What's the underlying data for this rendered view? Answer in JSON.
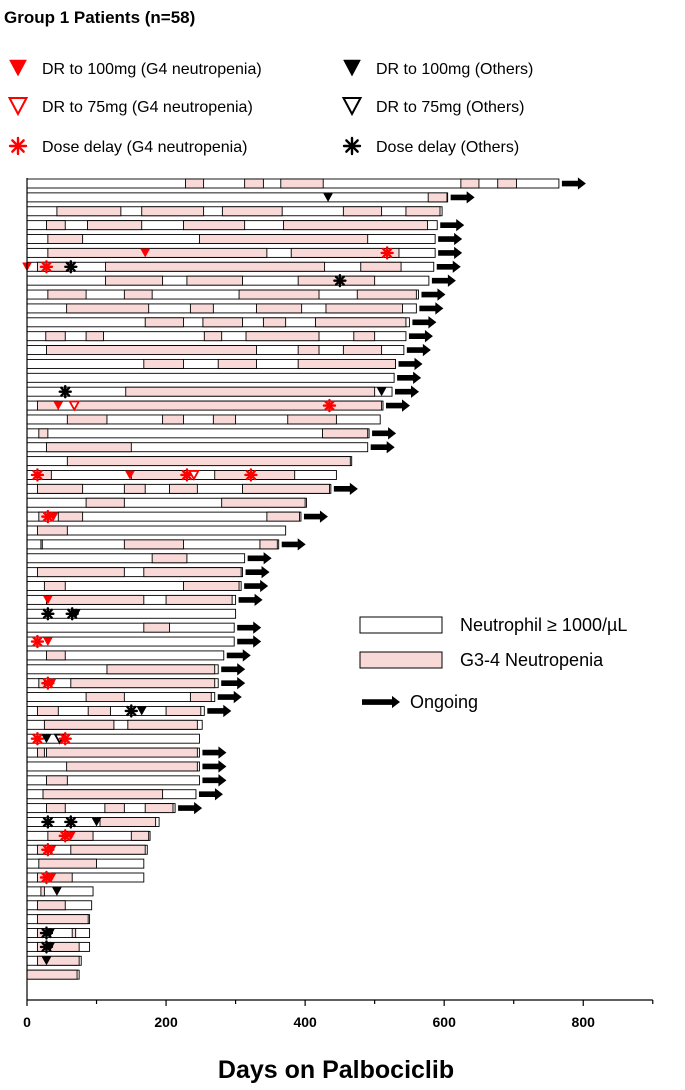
{
  "chart_data": {
    "type": "bar",
    "title": "Group 1 Patients (n=58)",
    "xlabel": "Days on Palbociclib",
    "ylabel": "",
    "xlim": [
      0,
      900
    ],
    "xticks": [
      0,
      200,
      400,
      600,
      800
    ],
    "grid": false,
    "colors": {
      "neutrophil_ok": "#ffffff",
      "neutropenia": "#f9d9d8",
      "g4_marker": "#ff0000",
      "other_marker": "#000000",
      "ongoing_arrow": "#000000"
    },
    "legend_top": [
      {
        "label": "DR to 100mg (G4 neutropenia)",
        "marker": "tri-fill",
        "color": "#ff0000"
      },
      {
        "label": "DR to 100mg (Others)",
        "marker": "tri-fill",
        "color": "#000000"
      },
      {
        "label": "DR to 75mg (G4 neutropenia)",
        "marker": "tri-open",
        "color": "#ff0000"
      },
      {
        "label": "DR to 75mg (Others)",
        "marker": "tri-open",
        "color": "#000000"
      },
      {
        "label": "Dose delay (G4 neutropenia)",
        "marker": "star",
        "color": "#ff0000"
      },
      {
        "label": "Dose delay (Others)",
        "marker": "star",
        "color": "#000000"
      }
    ],
    "legend_side": [
      {
        "label": "Neutrophil ≥ 1000/µL",
        "kind": "box-white"
      },
      {
        "label": "G3-4 Neutropenia",
        "kind": "box-pink"
      },
      {
        "label": "Ongoing",
        "kind": "arrow"
      }
    ],
    "patients": [
      {
        "end": 765,
        "ongoing": true,
        "pink": [
          [
            228,
            254
          ],
          [
            313,
            340
          ],
          [
            365,
            426
          ],
          [
            624,
            650
          ],
          [
            677,
            704
          ]
        ],
        "markers": []
      },
      {
        "end": 605,
        "ongoing": true,
        "pink": [
          [
            577,
            604
          ]
        ],
        "markers": [
          {
            "x": 433,
            "type": "dr100-other"
          }
        ]
      },
      {
        "end": 597,
        "ongoing": false,
        "pink": [
          [
            43,
            135
          ],
          [
            165,
            254
          ],
          [
            281,
            367
          ],
          [
            455,
            510
          ],
          [
            545,
            594
          ]
        ],
        "markers": []
      },
      {
        "end": 590,
        "ongoing": true,
        "pink": [
          [
            28,
            55
          ],
          [
            87,
            165
          ],
          [
            225,
            313
          ],
          [
            369,
            576
          ]
        ],
        "markers": []
      },
      {
        "end": 587,
        "ongoing": true,
        "pink": [
          [
            30,
            80
          ],
          [
            248,
            490
          ]
        ],
        "markers": []
      },
      {
        "end": 587,
        "ongoing": true,
        "pink": [
          [
            30,
            345
          ],
          [
            380,
            535
          ]
        ],
        "markers": [
          {
            "x": 170,
            "type": "dr100-g4"
          },
          {
            "x": 518,
            "type": "delay-g4"
          }
        ]
      },
      {
        "end": 585,
        "ongoing": true,
        "pink": [
          [
            15,
            60
          ],
          [
            113,
            428
          ],
          [
            480,
            538
          ]
        ],
        "markers": [
          {
            "x": 0,
            "type": "dr100-g4"
          },
          {
            "x": 28,
            "type": "delay-g4"
          },
          {
            "x": 63,
            "type": "delay-other"
          }
        ]
      },
      {
        "end": 578,
        "ongoing": true,
        "pink": [
          [
            113,
            195
          ],
          [
            230,
            310
          ],
          [
            390,
            500
          ]
        ],
        "markers": [
          {
            "x": 450,
            "type": "delay-other"
          }
        ]
      },
      {
        "end": 563,
        "ongoing": true,
        "pink": [
          [
            30,
            85
          ],
          [
            140,
            180
          ],
          [
            305,
            420
          ],
          [
            475,
            560
          ]
        ],
        "markers": []
      },
      {
        "end": 560,
        "ongoing": true,
        "pink": [
          [
            57,
            175
          ],
          [
            235,
            268
          ],
          [
            330,
            395
          ],
          [
            430,
            540
          ]
        ],
        "markers": []
      },
      {
        "end": 550,
        "ongoing": true,
        "pink": [
          [
            170,
            225
          ],
          [
            253,
            310
          ],
          [
            340,
            372
          ],
          [
            415,
            545
          ]
        ],
        "markers": []
      },
      {
        "end": 545,
        "ongoing": true,
        "pink": [
          [
            27,
            55
          ],
          [
            85,
            110
          ],
          [
            255,
            280
          ],
          [
            315,
            420
          ],
          [
            470,
            500
          ]
        ],
        "markers": []
      },
      {
        "end": 542,
        "ongoing": true,
        "pink": [
          [
            28,
            330
          ],
          [
            390,
            420
          ],
          [
            455,
            510
          ]
        ],
        "markers": []
      },
      {
        "end": 530,
        "ongoing": true,
        "pink": [
          [
            168,
            225
          ],
          [
            275,
            330
          ],
          [
            390,
            530
          ]
        ],
        "markers": []
      },
      {
        "end": 528,
        "ongoing": true,
        "pink": [],
        "markers": []
      },
      {
        "end": 525,
        "ongoing": true,
        "pink": [
          [
            142,
            500
          ]
        ],
        "markers": [
          {
            "x": 55,
            "type": "delay-other"
          },
          {
            "x": 510,
            "type": "dr100-other"
          }
        ]
      },
      {
        "end": 512,
        "ongoing": true,
        "pink": [
          [
            15,
            45
          ],
          [
            68,
            510
          ]
        ],
        "markers": [
          {
            "x": 45,
            "type": "dr100-g4"
          },
          {
            "x": 68,
            "type": "dr75-g4"
          },
          {
            "x": 435,
            "type": "delay-g4"
          }
        ]
      },
      {
        "end": 508,
        "ongoing": false,
        "pink": [
          [
            58,
            115
          ],
          [
            195,
            225
          ],
          [
            268,
            300
          ],
          [
            375,
            445
          ]
        ],
        "markers": []
      },
      {
        "end": 492,
        "ongoing": true,
        "pink": [
          [
            17,
            30
          ],
          [
            425,
            490
          ]
        ],
        "markers": []
      },
      {
        "end": 490,
        "ongoing": true,
        "pink": [
          [
            28,
            150
          ]
        ],
        "markers": []
      },
      {
        "end": 467,
        "ongoing": false,
        "pink": [
          [
            58,
            465
          ]
        ],
        "markers": []
      },
      {
        "end": 445,
        "ongoing": false,
        "pink": [
          [
            15,
            35
          ],
          [
            150,
            230
          ],
          [
            270,
            385
          ]
        ],
        "markers": [
          {
            "x": 15,
            "type": "delay-g4"
          },
          {
            "x": 148,
            "type": "dr100-g4"
          },
          {
            "x": 230,
            "type": "delay-g4"
          },
          {
            "x": 240,
            "type": "dr75-g4"
          },
          {
            "x": 322,
            "type": "delay-g4"
          }
        ]
      },
      {
        "end": 437,
        "ongoing": true,
        "pink": [
          [
            15,
            80
          ],
          [
            140,
            170
          ],
          [
            205,
            245
          ],
          [
            310,
            435
          ]
        ],
        "markers": []
      },
      {
        "end": 402,
        "ongoing": false,
        "pink": [
          [
            85,
            140
          ],
          [
            280,
            400
          ]
        ],
        "markers": []
      },
      {
        "end": 394,
        "ongoing": true,
        "pink": [
          [
            17,
            30
          ],
          [
            45,
            80
          ],
          [
            345,
            392
          ]
        ],
        "markers": [
          {
            "x": 30,
            "type": "delay-g4"
          },
          {
            "x": 38,
            "type": "dr100-g4"
          }
        ]
      },
      {
        "end": 372,
        "ongoing": false,
        "pink": [
          [
            15,
            58
          ]
        ],
        "markers": []
      },
      {
        "end": 362,
        "ongoing": true,
        "pink": [
          [
            20,
            22
          ],
          [
            140,
            225
          ],
          [
            335,
            360
          ]
        ],
        "markers": []
      },
      {
        "end": 313,
        "ongoing": true,
        "pink": [
          [
            180,
            230
          ]
        ],
        "markers": []
      },
      {
        "end": 310,
        "ongoing": true,
        "pink": [
          [
            15,
            140
          ],
          [
            168,
            308
          ]
        ],
        "markers": []
      },
      {
        "end": 308,
        "ongoing": true,
        "pink": [
          [
            25,
            55
          ],
          [
            225,
            305
          ]
        ],
        "markers": []
      },
      {
        "end": 300,
        "ongoing": true,
        "pink": [
          [
            28,
            168
          ],
          [
            200,
            295
          ]
        ],
        "markers": [
          {
            "x": 30,
            "type": "dr100-g4"
          }
        ]
      },
      {
        "end": 300,
        "ongoing": false,
        "pink": [],
        "markers": [
          {
            "x": 30,
            "type": "delay-other"
          },
          {
            "x": 65,
            "type": "delay-other"
          },
          {
            "x": 70,
            "type": "dr100-other"
          }
        ]
      },
      {
        "end": 298,
        "ongoing": true,
        "pink": [
          [
            168,
            205
          ]
        ],
        "markers": []
      },
      {
        "end": 298,
        "ongoing": true,
        "pink": [],
        "markers": [
          {
            "x": 15,
            "type": "delay-g4"
          },
          {
            "x": 30,
            "type": "dr100-g4"
          }
        ]
      },
      {
        "end": 283,
        "ongoing": true,
        "pink": [
          [
            28,
            55
          ]
        ],
        "markers": []
      },
      {
        "end": 275,
        "ongoing": true,
        "pink": [
          [
            115,
            270
          ]
        ],
        "markers": []
      },
      {
        "end": 275,
        "ongoing": true,
        "pink": [
          [
            17,
            25
          ],
          [
            63,
            270
          ]
        ],
        "markers": [
          {
            "x": 30,
            "type": "delay-g4"
          },
          {
            "x": 35,
            "type": "dr100-g4"
          }
        ]
      },
      {
        "end": 270,
        "ongoing": true,
        "pink": [
          [
            85,
            140
          ],
          [
            235,
            265
          ]
        ],
        "markers": []
      },
      {
        "end": 255,
        "ongoing": true,
        "pink": [
          [
            15,
            45
          ],
          [
            88,
            120
          ],
          [
            200,
            250
          ]
        ],
        "markers": [
          {
            "x": 150,
            "type": "delay-other"
          },
          {
            "x": 165,
            "type": "dr100-other"
          }
        ]
      },
      {
        "end": 252,
        "ongoing": false,
        "pink": [
          [
            25,
            125
          ],
          [
            145,
            245
          ]
        ],
        "markers": []
      },
      {
        "end": 248,
        "ongoing": false,
        "pink": [],
        "markers": [
          {
            "x": 15,
            "type": "delay-g4"
          },
          {
            "x": 28,
            "type": "dr100-other"
          },
          {
            "x": 47,
            "type": "dr75-other"
          },
          {
            "x": 55,
            "type": "delay-g4"
          }
        ]
      },
      {
        "end": 248,
        "ongoing": true,
        "pink": [
          [
            15,
            25
          ],
          [
            28,
            245
          ]
        ],
        "markers": []
      },
      {
        "end": 248,
        "ongoing": true,
        "pink": [
          [
            57,
            245
          ]
        ],
        "markers": []
      },
      {
        "end": 248,
        "ongoing": true,
        "pink": [
          [
            28,
            58
          ]
        ],
        "markers": []
      },
      {
        "end": 243,
        "ongoing": true,
        "pink": [
          [
            23,
            195
          ]
        ],
        "markers": []
      },
      {
        "end": 213,
        "ongoing": true,
        "pink": [
          [
            28,
            55
          ],
          [
            112,
            140
          ],
          [
            170,
            210
          ]
        ],
        "markers": []
      },
      {
        "end": 190,
        "ongoing": false,
        "pink": [
          [
            105,
            185
          ]
        ],
        "markers": [
          {
            "x": 30,
            "type": "delay-other"
          },
          {
            "x": 63,
            "type": "delay-other"
          },
          {
            "x": 100,
            "type": "dr100-other"
          }
        ]
      },
      {
        "end": 177,
        "ongoing": false,
        "pink": [
          [
            30,
            95
          ],
          [
            150,
            175
          ]
        ],
        "markers": [
          {
            "x": 55,
            "type": "delay-g4"
          },
          {
            "x": 63,
            "type": "dr100-g4"
          }
        ]
      },
      {
        "end": 173,
        "ongoing": false,
        "pink": [
          [
            15,
            30
          ],
          [
            63,
            170
          ]
        ],
        "markers": [
          {
            "x": 30,
            "type": "delay-g4"
          },
          {
            "x": 35,
            "type": "dr100-g4"
          }
        ]
      },
      {
        "end": 168,
        "ongoing": false,
        "pink": [
          [
            17,
            100
          ]
        ],
        "markers": []
      },
      {
        "end": 168,
        "ongoing": false,
        "pink": [
          [
            15,
            65
          ]
        ],
        "markers": [
          {
            "x": 28,
            "type": "delay-g4"
          },
          {
            "x": 35,
            "type": "dr100-g4"
          }
        ]
      },
      {
        "end": 95,
        "ongoing": false,
        "pink": [
          [
            20,
            25
          ]
        ],
        "markers": [
          {
            "x": 43,
            "type": "dr100-other"
          }
        ]
      },
      {
        "end": 93,
        "ongoing": false,
        "pink": [
          [
            15,
            55
          ]
        ],
        "markers": []
      },
      {
        "end": 90,
        "ongoing": false,
        "pink": [
          [
            15,
            88
          ]
        ],
        "markers": []
      },
      {
        "end": 90,
        "ongoing": false,
        "pink": [
          [
            15,
            28
          ],
          [
            65,
            70
          ]
        ],
        "markers": [
          {
            "x": 28,
            "type": "delay-other"
          },
          {
            "x": 33,
            "type": "dr100-other"
          }
        ]
      },
      {
        "end": 90,
        "ongoing": false,
        "pink": [
          [
            15,
            75
          ]
        ],
        "markers": [
          {
            "x": 28,
            "type": "delay-other"
          },
          {
            "x": 33,
            "type": "dr100-other"
          }
        ]
      },
      {
        "end": 78,
        "ongoing": false,
        "pink": [
          [
            15,
            75
          ]
        ],
        "markers": [
          {
            "x": 28,
            "type": "dr100-other"
          }
        ]
      },
      {
        "end": 75,
        "ongoing": false,
        "pink": [
          [
            0,
            72
          ]
        ],
        "markers": []
      }
    ]
  }
}
